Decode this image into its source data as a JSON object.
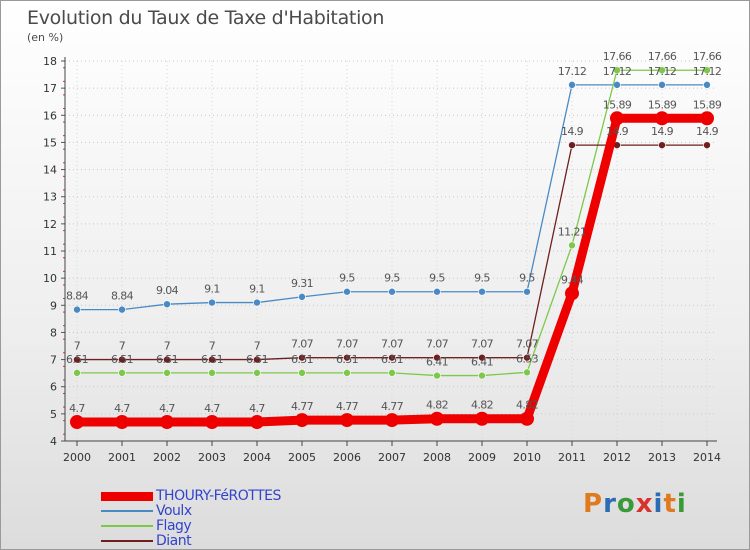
{
  "title": "Evolution du Taux de Taxe d'Habitation",
  "unit": "(en %)",
  "logo": {
    "letters": [
      "P",
      "r",
      "o",
      "x",
      "i",
      "t",
      "i"
    ],
    "colors": [
      "#e07a1f",
      "#2a6db5",
      "#3a9a3a",
      "#d9322e",
      "#2a6db5",
      "#e07a1f",
      "#3a9a3a"
    ]
  },
  "chart_data": {
    "type": "line",
    "title": "Evolution du Taux de Taxe d'Habitation",
    "ylabel": "(en %)",
    "xlabel": "",
    "ylim": [
      4,
      18
    ],
    "yticks": [
      "4",
      "5",
      "6",
      "7",
      "8",
      "9",
      "10",
      "11",
      "12",
      "13",
      "14",
      "15",
      "16",
      "17",
      "18"
    ],
    "categories": [
      "2000",
      "2001",
      "2002",
      "2003",
      "2004",
      "2005",
      "2006",
      "2007",
      "2008",
      "2009",
      "2010",
      "2011",
      "2012",
      "2013",
      "2014"
    ],
    "grid": "horizontal dotted",
    "legend_position": "bottom-left",
    "series": [
      {
        "name": "Voulx",
        "color": "#4a8ac4",
        "values": [
          8.84,
          8.84,
          9.04,
          9.1,
          9.1,
          9.31,
          9.5,
          9.5,
          9.5,
          9.5,
          9.5,
          17.12,
          17.12,
          17.12,
          17.12
        ],
        "labels": [
          "8.84",
          "8.84",
          "9.04",
          "9.1",
          "9.1",
          "9.31",
          "9.5",
          "9.5",
          "9.5",
          "9.5",
          "9.5",
          "17.12",
          "17.12",
          "17.12",
          "17.12"
        ]
      },
      {
        "name": "Flagy",
        "color": "#7dc84a",
        "values": [
          6.51,
          6.51,
          6.51,
          6.51,
          6.51,
          6.51,
          6.51,
          6.51,
          6.41,
          6.41,
          6.53,
          11.21,
          17.66,
          17.66,
          17.66
        ],
        "labels": [
          "6.51",
          "6.51",
          "6.51",
          "6.51",
          "6.51",
          "6.51",
          "6.51",
          "6.51",
          "6.41",
          "6.41",
          "6.53",
          "11.21",
          "17.66",
          "17.66",
          "17.66"
        ]
      },
      {
        "name": "Diant",
        "color": "#6e1f1f",
        "values": [
          7,
          7,
          7,
          7,
          7,
          7.07,
          7.07,
          7.07,
          7.07,
          7.07,
          7.07,
          14.9,
          14.9,
          14.9,
          14.9
        ],
        "labels": [
          "7",
          "7",
          "7",
          "7",
          "7",
          "7.07",
          "7.07",
          "7.07",
          "7.07",
          "7.07",
          "7.07",
          "14.9",
          "14.9",
          "14.9",
          "14.9"
        ]
      },
      {
        "name": "THOURY-FéROTTES",
        "color": "#ee0000",
        "values": [
          4.7,
          4.7,
          4.7,
          4.7,
          4.7,
          4.77,
          4.77,
          4.77,
          4.82,
          4.82,
          4.82,
          9.44,
          15.89,
          15.89,
          15.89
        ],
        "labels": [
          "4.7",
          "4.7",
          "4.7",
          "4.7",
          "4.7",
          "4.77",
          "4.77",
          "4.77",
          "4.82",
          "4.82",
          "4.82",
          "9.44",
          "15.89",
          "15.89",
          "15.89"
        ]
      }
    ],
    "legend": [
      "THOURY-FéROTTES",
      "Voulx",
      "Flagy",
      "Diant"
    ]
  }
}
